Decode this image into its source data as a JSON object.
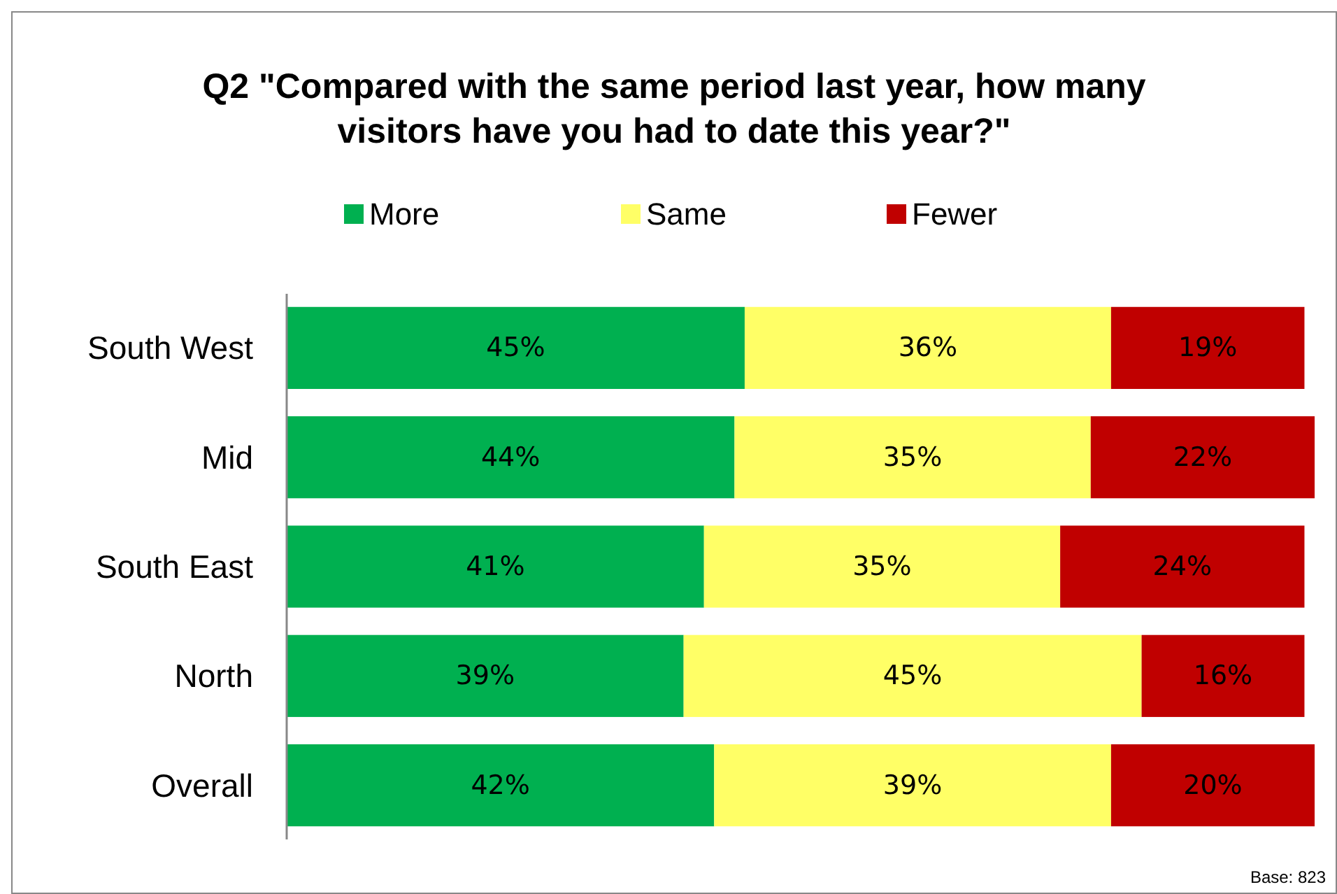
{
  "chart_data": {
    "type": "bar",
    "orientation": "horizontal",
    "stacked": true,
    "title": "Q2 \"Compared with the same period last year, how many visitors have you had to date this year?\"",
    "categories": [
      "South West",
      "Mid",
      "South East",
      "North",
      "Overall"
    ],
    "series": [
      {
        "name": "More",
        "color": "#00b050",
        "values": [
          45,
          44,
          41,
          39,
          42
        ],
        "value_labels": [
          "45%",
          "44%",
          "41%",
          "39%",
          "42%"
        ]
      },
      {
        "name": "Same",
        "color": "#ffff66",
        "values": [
          36,
          35,
          35,
          45,
          39
        ],
        "value_labels": [
          "36%",
          "35%",
          "35%",
          "45%",
          "39%"
        ]
      },
      {
        "name": "Fewer",
        "color": "#c00000",
        "values": [
          19,
          22,
          24,
          16,
          20
        ],
        "value_labels": [
          "19%",
          "22%",
          "24%",
          "16%",
          "20%"
        ]
      }
    ],
    "legend": "top",
    "annotations": [
      "Base: 823"
    ]
  }
}
